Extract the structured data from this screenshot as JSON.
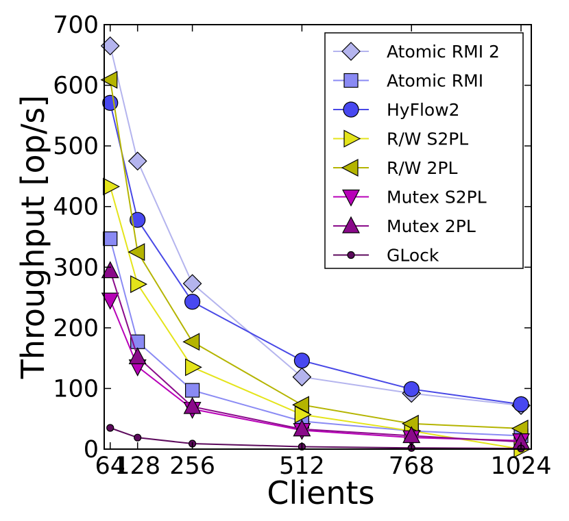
{
  "chart_data": {
    "type": "line",
    "title": "",
    "xlabel": "Clients",
    "ylabel": "Throughput [op/s]",
    "xlim": [
      50,
      1048
    ],
    "ylim": [
      0,
      700
    ],
    "x": [
      64,
      128,
      256,
      512,
      768,
      1024
    ],
    "x_tick_labels": [
      "64",
      "128",
      "256",
      "512",
      "768",
      "1024"
    ],
    "y_ticks": [
      0,
      100,
      200,
      300,
      400,
      500,
      600,
      700
    ],
    "y_tick_labels": [
      "0",
      "100",
      "200",
      "300",
      "400",
      "500",
      "600",
      "700"
    ],
    "grid": false,
    "legend_position": "top-right",
    "series": [
      {
        "name": "Atomic RMI 2",
        "marker": "diamond",
        "line_color": "#b4b4ee",
        "fill_color": "#b4b4ee",
        "values": [
          665,
          475,
          273,
          119,
          92,
          72
        ]
      },
      {
        "name": "Atomic RMI",
        "marker": "square",
        "line_color": "#8a8af4",
        "fill_color": "#8a8af4",
        "values": [
          347,
          177,
          97,
          46,
          30,
          22
        ]
      },
      {
        "name": "HyFlow2",
        "marker": "circle",
        "line_color": "#4848e6",
        "fill_color": "#4848f0",
        "values": [
          571,
          378,
          243,
          146,
          99,
          74
        ]
      },
      {
        "name": "R/W S2PL",
        "marker": "triangle-right",
        "line_color": "#e4e41a",
        "fill_color": "#e4e41a",
        "values": [
          433,
          272,
          135,
          57,
          30,
          0
        ]
      },
      {
        "name": "R/W 2PL",
        "marker": "triangle-left",
        "line_color": "#b4b400",
        "fill_color": "#b4b400",
        "values": [
          609,
          325,
          177,
          73,
          42,
          34
        ]
      },
      {
        "name": "Mutex S2PL",
        "marker": "triangle-down",
        "line_color": "#b800b8",
        "fill_color": "#b800b8",
        "values": [
          246,
          136,
          66,
          31,
          19,
          14
        ]
      },
      {
        "name": "Mutex 2PL",
        "marker": "triangle-up",
        "line_color": "#8a0a8a",
        "fill_color": "#8a0a8a",
        "values": [
          294,
          152,
          70,
          33,
          22,
          12
        ]
      },
      {
        "name": "GLock",
        "marker": "small-circle",
        "line_color": "#5c0a5c",
        "fill_color": "#5c0a5c",
        "values": [
          35,
          19,
          9,
          4,
          2,
          1
        ]
      }
    ]
  }
}
